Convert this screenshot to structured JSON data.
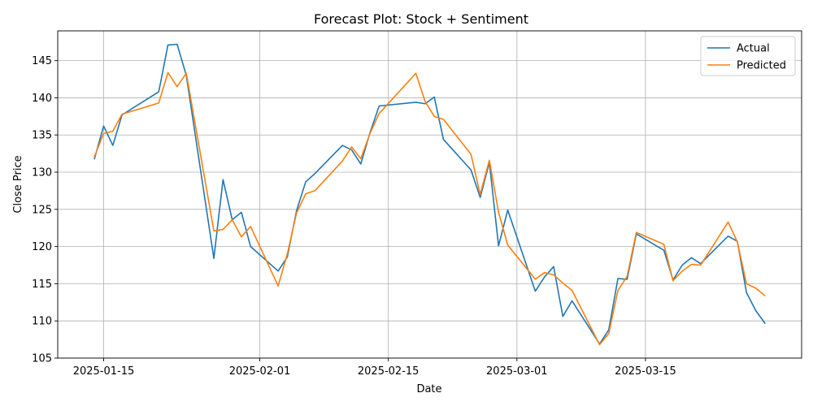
{
  "chart_data": {
    "type": "line",
    "title": "Forecast Plot: Stock + Sentiment",
    "xlabel": "Date",
    "ylabel": "Close Price",
    "xlim": [
      "2025-01-10",
      "2025-04-01"
    ],
    "ylim": [
      105,
      149
    ],
    "x_ticks": [
      "2025-01-15",
      "2025-02-01",
      "2025-02-15",
      "2025-03-01",
      "2025-03-15"
    ],
    "y_ticks": [
      105,
      110,
      115,
      120,
      125,
      130,
      135,
      140,
      145
    ],
    "grid": true,
    "legend_position": "top-right",
    "series": [
      {
        "name": "Actual",
        "color": "#1f77b4",
        "points": [
          [
            "2025-01-14",
            131.8
          ],
          [
            "2025-01-15",
            136.2
          ],
          [
            "2025-01-16",
            133.6
          ],
          [
            "2025-01-17",
            137.7
          ],
          [
            "2025-01-21",
            140.8
          ],
          [
            "2025-01-22",
            147.1
          ],
          [
            "2025-01-23",
            147.2
          ],
          [
            "2025-01-24",
            143.0
          ],
          [
            "2025-01-27",
            118.4
          ],
          [
            "2025-01-28",
            129.0
          ],
          [
            "2025-01-29",
            123.6
          ],
          [
            "2025-01-30",
            124.6
          ],
          [
            "2025-01-31",
            120.0
          ],
          [
            "2025-02-03",
            116.7
          ],
          [
            "2025-02-04",
            118.6
          ],
          [
            "2025-02-05",
            124.8
          ],
          [
            "2025-02-06",
            128.7
          ],
          [
            "2025-02-07",
            129.8
          ],
          [
            "2025-02-10",
            133.6
          ],
          [
            "2025-02-11",
            133.0
          ],
          [
            "2025-02-12",
            131.1
          ],
          [
            "2025-02-13",
            135.3
          ],
          [
            "2025-02-14",
            138.9
          ],
          [
            "2025-02-18",
            139.4
          ],
          [
            "2025-02-19",
            139.2
          ],
          [
            "2025-02-20",
            140.1
          ],
          [
            "2025-02-21",
            134.4
          ],
          [
            "2025-02-24",
            130.3
          ],
          [
            "2025-02-25",
            126.6
          ],
          [
            "2025-02-26",
            131.3
          ],
          [
            "2025-02-27",
            120.1
          ],
          [
            "2025-02-28",
            124.9
          ],
          [
            "2025-03-03",
            114.0
          ],
          [
            "2025-03-04",
            115.9
          ],
          [
            "2025-03-05",
            117.3
          ],
          [
            "2025-03-06",
            110.6
          ],
          [
            "2025-03-07",
            112.7
          ],
          [
            "2025-03-10",
            106.9
          ],
          [
            "2025-03-11",
            108.8
          ],
          [
            "2025-03-12",
            115.7
          ],
          [
            "2025-03-13",
            115.6
          ],
          [
            "2025-03-14",
            121.7
          ],
          [
            "2025-03-17",
            119.5
          ],
          [
            "2025-03-18",
            115.5
          ],
          [
            "2025-03-19",
            117.5
          ],
          [
            "2025-03-20",
            118.5
          ],
          [
            "2025-03-21",
            117.7
          ],
          [
            "2025-03-24",
            121.4
          ],
          [
            "2025-03-25",
            120.7
          ],
          [
            "2025-03-26",
            113.8
          ],
          [
            "2025-03-27",
            111.4
          ],
          [
            "2025-03-28",
            109.7
          ]
        ]
      },
      {
        "name": "Predicted",
        "color": "#ff7f0e",
        "points": [
          [
            "2025-01-14",
            132.1
          ],
          [
            "2025-01-15",
            135.2
          ],
          [
            "2025-01-16",
            135.5
          ],
          [
            "2025-01-17",
            137.8
          ],
          [
            "2025-01-21",
            139.3
          ],
          [
            "2025-01-22",
            143.4
          ],
          [
            "2025-01-23",
            141.5
          ],
          [
            "2025-01-24",
            143.3
          ],
          [
            "2025-01-27",
            122.1
          ],
          [
            "2025-01-28",
            122.3
          ],
          [
            "2025-01-29",
            123.6
          ],
          [
            "2025-01-30",
            121.3
          ],
          [
            "2025-01-31",
            122.7
          ],
          [
            "2025-02-03",
            114.7
          ],
          [
            "2025-02-04",
            119.0
          ],
          [
            "2025-02-05",
            124.5
          ],
          [
            "2025-02-06",
            127.1
          ],
          [
            "2025-02-07",
            127.5
          ],
          [
            "2025-02-10",
            131.5
          ],
          [
            "2025-02-11",
            133.4
          ],
          [
            "2025-02-12",
            131.8
          ],
          [
            "2025-02-13",
            135.2
          ],
          [
            "2025-02-14",
            137.9
          ],
          [
            "2025-02-18",
            143.3
          ],
          [
            "2025-02-19",
            139.5
          ],
          [
            "2025-02-20",
            137.5
          ],
          [
            "2025-02-21",
            137.1
          ],
          [
            "2025-02-24",
            132.4
          ],
          [
            "2025-02-25",
            127.0
          ],
          [
            "2025-02-26",
            131.6
          ],
          [
            "2025-02-27",
            124.6
          ],
          [
            "2025-02-28",
            120.2
          ],
          [
            "2025-03-03",
            115.6
          ],
          [
            "2025-03-04",
            116.5
          ],
          [
            "2025-03-05",
            116.2
          ],
          [
            "2025-03-06",
            115.1
          ],
          [
            "2025-03-07",
            114.1
          ],
          [
            "2025-03-10",
            106.8
          ],
          [
            "2025-03-11",
            108.3
          ],
          [
            "2025-03-12",
            114.1
          ],
          [
            "2025-03-13",
            116.0
          ],
          [
            "2025-03-14",
            121.9
          ],
          [
            "2025-03-17",
            120.3
          ],
          [
            "2025-03-18",
            115.4
          ],
          [
            "2025-03-19",
            116.7
          ],
          [
            "2025-03-20",
            117.6
          ],
          [
            "2025-03-21",
            117.5
          ],
          [
            "2025-03-24",
            123.3
          ],
          [
            "2025-03-25",
            120.6
          ],
          [
            "2025-03-26",
            115.0
          ],
          [
            "2025-03-27",
            114.4
          ],
          [
            "2025-03-28",
            113.4
          ]
        ]
      }
    ]
  }
}
